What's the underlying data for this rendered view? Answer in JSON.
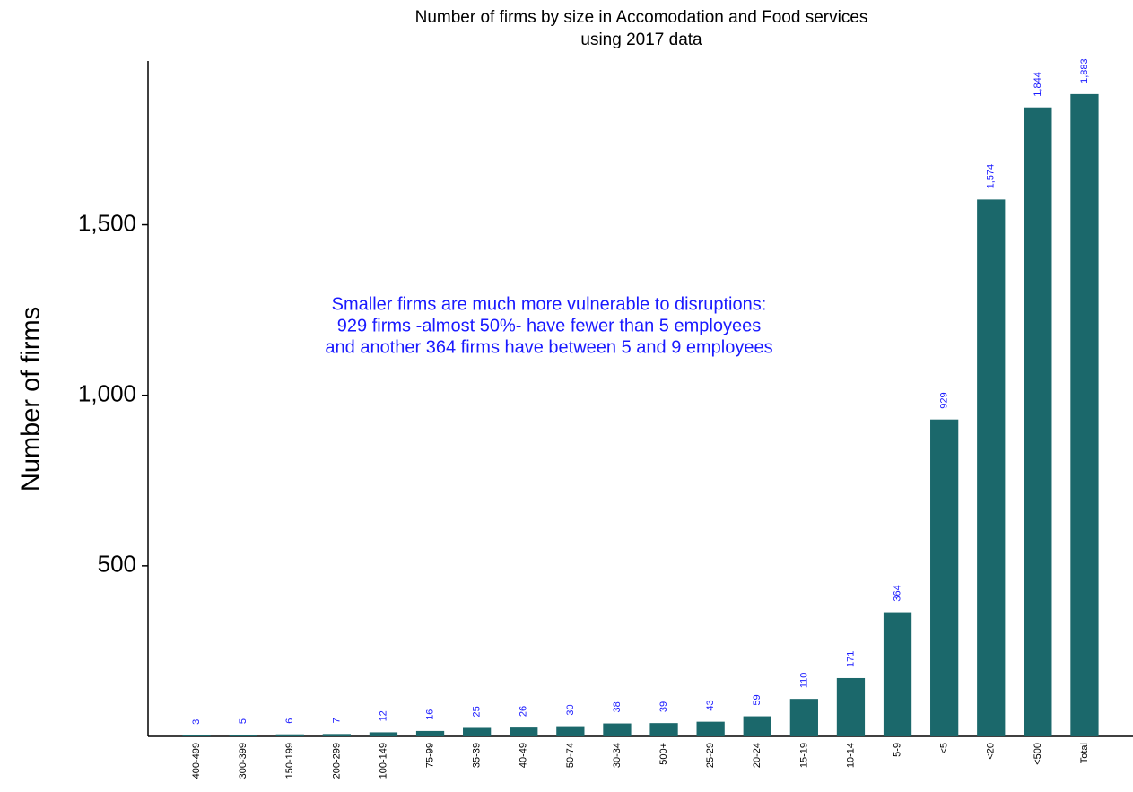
{
  "chart_data": {
    "type": "bar",
    "title": [
      "Number of firms by size in Accomodation and Food services",
      "using 2017 data"
    ],
    "y_label": "Number of firms",
    "annotation": [
      "Smaller firms are much more vulnerable to disruptions:",
      "929 firms -almost 50%- have fewer than 5 employees",
      "and another 364 firms have between 5 and 9 employees"
    ],
    "categories": [
      "400-499",
      "300-399",
      "150-199",
      "200-299",
      "100-149",
      "75-99",
      "35-39",
      "40-49",
      "50-74",
      "30-34",
      "500+",
      "25-29",
      "20-24",
      "15-19",
      "10-14",
      "5-9",
      "<5",
      "<20",
      "<500",
      "Total"
    ],
    "values": [
      3,
      5,
      6,
      7,
      12,
      16,
      25,
      26,
      30,
      38,
      39,
      43,
      59,
      110,
      171,
      364,
      929,
      1574,
      1844,
      1883
    ],
    "value_labels": [
      "3",
      "5",
      "6",
      "7",
      "12",
      "16",
      "25",
      "26",
      "30",
      "38",
      "39",
      "43",
      "59",
      "110",
      "171",
      "364",
      "929",
      "1,574",
      "1,844",
      "1,883"
    ],
    "color": "#1b686b",
    "label_color": "#1a1aff",
    "ylim": [
      0,
      1980
    ],
    "yticks": [
      500,
      {
        "value": 1000,
        "label": "1,000"
      },
      {
        "value": 1500,
        "label": "1,500"
      }
    ],
    "grid": false
  }
}
